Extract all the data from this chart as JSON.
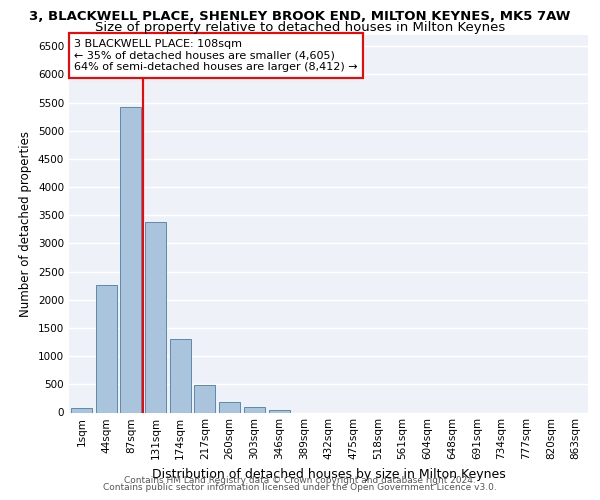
{
  "title": "3, BLACKWELL PLACE, SHENLEY BROOK END, MILTON KEYNES, MK5 7AW",
  "subtitle": "Size of property relative to detached houses in Milton Keynes",
  "xlabel": "Distribution of detached houses by size in Milton Keynes",
  "ylabel": "Number of detached properties",
  "bar_labels": [
    "1sqm",
    "44sqm",
    "87sqm",
    "131sqm",
    "174sqm",
    "217sqm",
    "260sqm",
    "303sqm",
    "346sqm",
    "389sqm",
    "432sqm",
    "475sqm",
    "518sqm",
    "561sqm",
    "604sqm",
    "648sqm",
    "691sqm",
    "734sqm",
    "777sqm",
    "820sqm",
    "863sqm"
  ],
  "bar_values": [
    80,
    2270,
    5430,
    3380,
    1300,
    490,
    185,
    90,
    40,
    0,
    0,
    0,
    0,
    0,
    0,
    0,
    0,
    0,
    0,
    0,
    0
  ],
  "bar_color": "#aac4de",
  "bar_edge_color": "#5a8ab0",
  "vline_color": "red",
  "vline_x_index": 2,
  "annotation_text": "3 BLACKWELL PLACE: 108sqm\n← 35% of detached houses are smaller (4,605)\n64% of semi-detached houses are larger (8,412) →",
  "annotation_box_color": "white",
  "annotation_box_edge": "red",
  "ylim": [
    0,
    6700
  ],
  "yticks": [
    0,
    500,
    1000,
    1500,
    2000,
    2500,
    3000,
    3500,
    4000,
    4500,
    5000,
    5500,
    6000,
    6500
  ],
  "bg_color": "#eef2f8",
  "grid_color": "white",
  "footer_line1": "Contains HM Land Registry data © Crown copyright and database right 2024.",
  "footer_line2": "Contains public sector information licensed under the Open Government Licence v3.0.",
  "title_fontsize": 9.5,
  "subtitle_fontsize": 9.5,
  "xlabel_fontsize": 9,
  "ylabel_fontsize": 8.5,
  "tick_fontsize": 7.5,
  "footer_fontsize": 6.5
}
